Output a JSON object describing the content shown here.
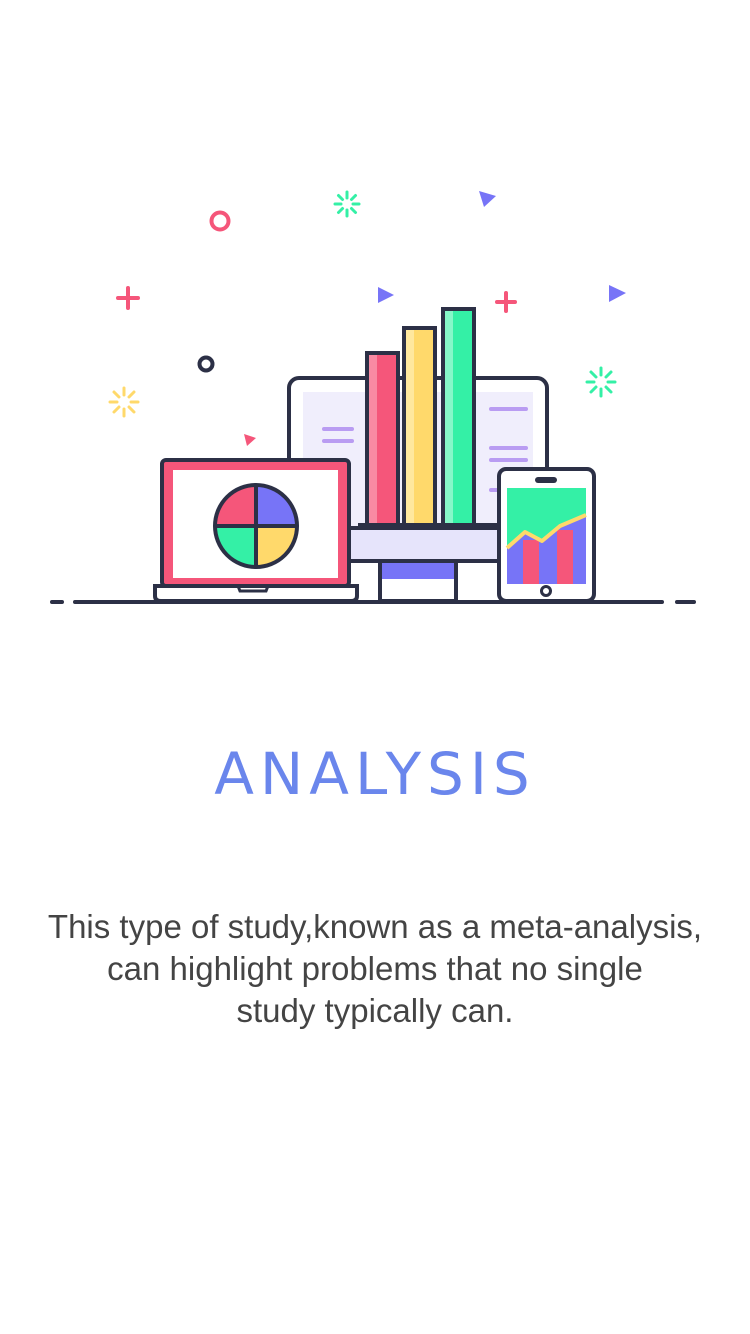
{
  "screen": {
    "title": "ANALYSIS",
    "description_lines": [
      "This type of study,known as a meta-analysis,",
      "can highlight problems that no single",
      "study typically can."
    ]
  },
  "illustration": {
    "icons": [
      "laptop-icon",
      "pie-chart-icon",
      "monitor-icon",
      "bar-chart-icon",
      "tablet-icon",
      "area-chart-icon"
    ],
    "colors": {
      "outline": "#2c3046",
      "pink": "#f5567a",
      "yellow": "#ffd96b",
      "green": "#34f0a6",
      "purple": "#7774f7",
      "lavender": "#b99cf2",
      "screen_bg": "#f0eefc",
      "title": "#6a86ec"
    }
  }
}
